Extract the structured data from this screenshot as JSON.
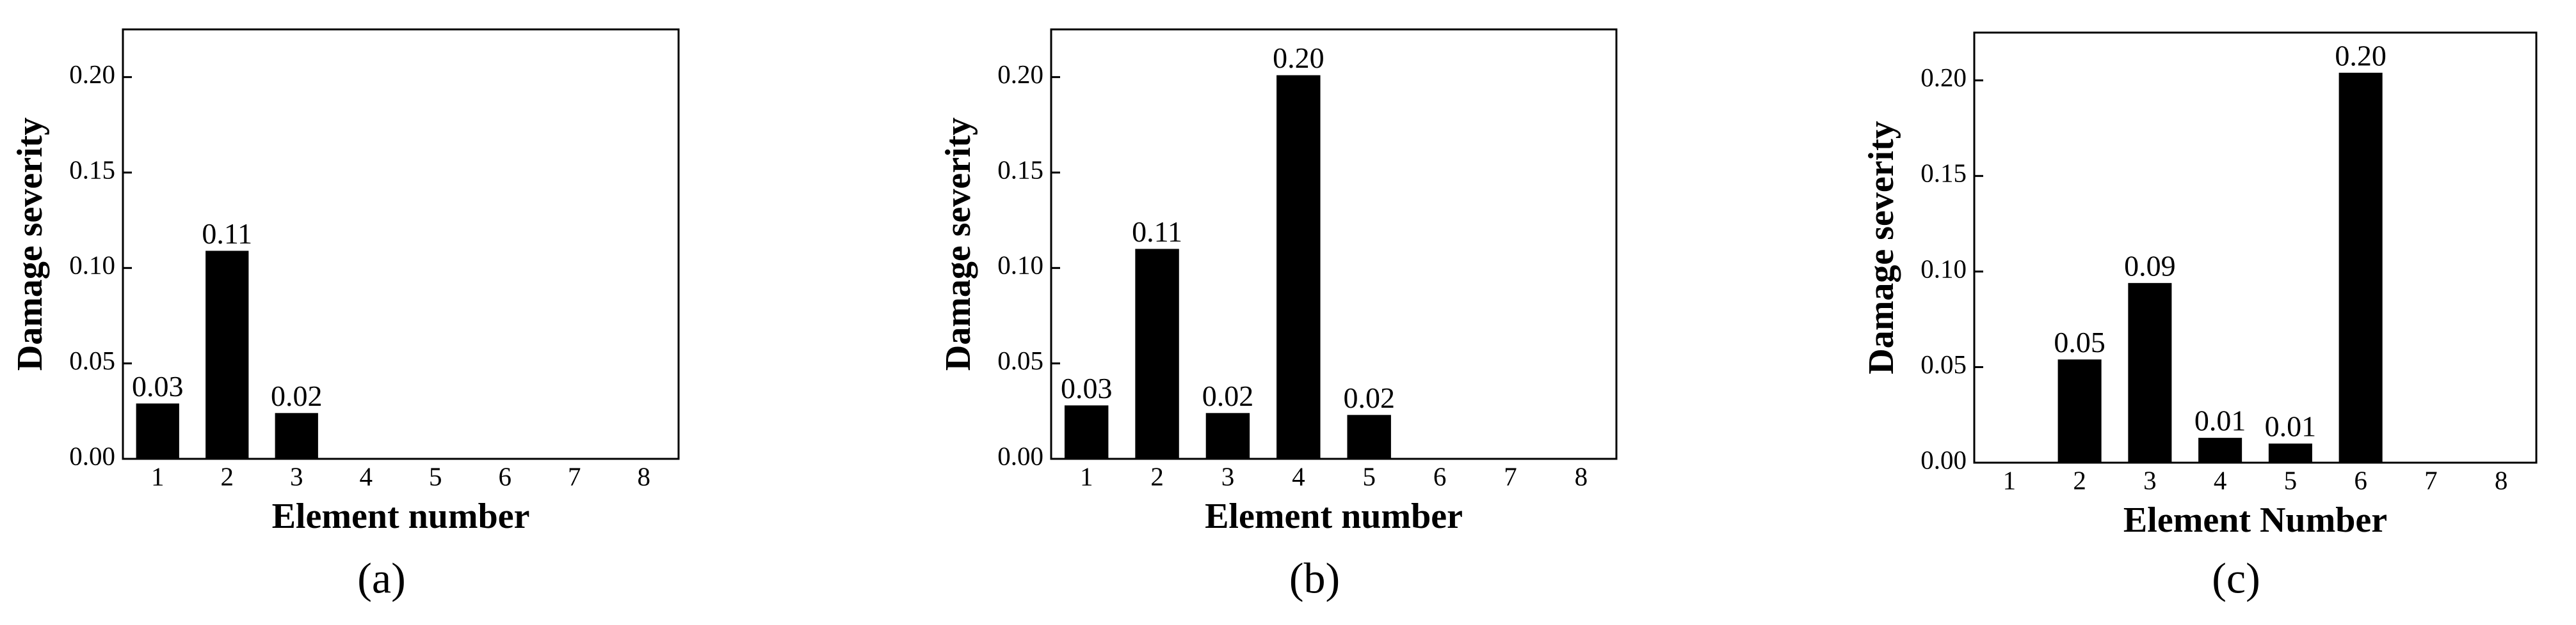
{
  "chart_data": [
    {
      "type": "bar",
      "panel_label": "(a)",
      "ylabel": "Damage severity",
      "xlabel": "Element number",
      "categories": [
        "1",
        "2",
        "3",
        "4",
        "5",
        "6",
        "7",
        "8"
      ],
      "values": [
        0.029,
        0.109,
        0.024,
        null,
        null,
        null,
        null,
        null
      ],
      "value_labels": [
        "0.03",
        "0.11",
        "0.02",
        null,
        null,
        null,
        null,
        null
      ],
      "color": "#000000",
      "ylim": [
        0,
        0.225
      ],
      "yticks": [
        {
          "value": 0,
          "label": "0.00"
        },
        {
          "value": 0.05,
          "label": "0.05"
        },
        {
          "value": 0.1,
          "label": "0.10"
        },
        {
          "value": 0.15,
          "label": "0.15"
        },
        {
          "value": 0.2,
          "label": "0.20"
        }
      ]
    },
    {
      "type": "bar",
      "panel_label": "(b)",
      "ylabel": "Damage severity",
      "xlabel": "Element number",
      "categories": [
        "1",
        "2",
        "3",
        "4",
        "5",
        "6",
        "7",
        "8"
      ],
      "values": [
        0.028,
        0.11,
        0.024,
        0.201,
        0.023,
        null,
        null,
        null
      ],
      "value_labels": [
        "0.03",
        "0.11",
        "0.02",
        "0.20",
        "0.02",
        null,
        null,
        null
      ],
      "color": "#000000",
      "ylim": [
        0,
        0.225
      ],
      "yticks": [
        {
          "value": 0,
          "label": "0.00"
        },
        {
          "value": 0.05,
          "label": "0.05"
        },
        {
          "value": 0.1,
          "label": "0.10"
        },
        {
          "value": 0.15,
          "label": "0.15"
        },
        {
          "value": 0.2,
          "label": "0.20"
        }
      ]
    },
    {
      "type": "bar",
      "panel_label": "(c)",
      "ylabel": "Damage severity",
      "xlabel": "Element Number",
      "categories": [
        "1",
        "2",
        "3",
        "4",
        "5",
        "6",
        "7",
        "8"
      ],
      "values": [
        null,
        0.054,
        0.094,
        0.013,
        0.01,
        0.204,
        null,
        null
      ],
      "value_labels": [
        null,
        "0.05",
        "0.09",
        "0.01",
        "0.01",
        "0.20",
        null,
        null
      ],
      "color": "#000000",
      "ylim": [
        0,
        0.225
      ],
      "yticks": [
        {
          "value": 0,
          "label": "0.00"
        },
        {
          "value": 0.05,
          "label": "0.05"
        },
        {
          "value": 0.1,
          "label": "0.10"
        },
        {
          "value": 0.15,
          "label": "0.15"
        },
        {
          "value": 0.2,
          "label": "0.20"
        }
      ]
    }
  ]
}
